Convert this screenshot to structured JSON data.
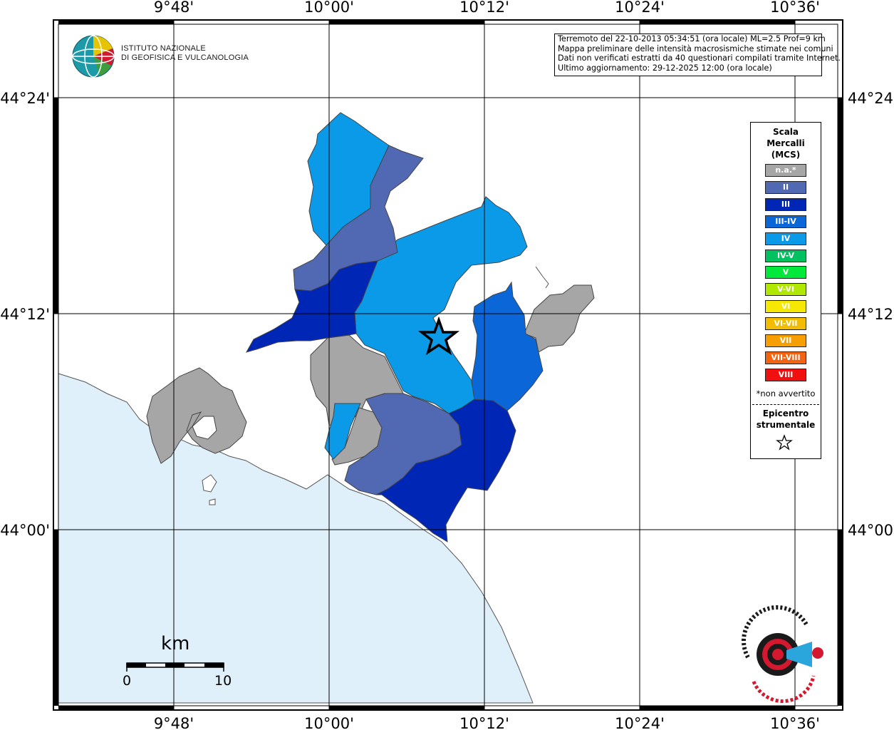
{
  "header": {
    "logo_alt": "INGV",
    "institute_line1": "ISTITUTO NAZIONALE",
    "institute_line2": "DI GEOFISICA E VULCANOLOGIA"
  },
  "info": {
    "line1": "Terremoto del 22-10-2013 05:34:51 (ora locale) ML=2.5 Prof=9 km",
    "line2": "Mappa preliminare delle intensità macrosismiche stimate nei comuni",
    "line3": "Dati non verificati estratti da 40 questionari compilati tramite Internet.",
    "line4": "Ultimo aggiornamento: 29-12-2025 12:00 (ora locale)"
  },
  "axes": {
    "longitude_ticks": [
      "9°48'",
      "10°00'",
      "10°12'",
      "10°24'",
      "10°36'"
    ],
    "latitude_ticks": [
      "44°24'",
      "44°12'",
      "44°00'"
    ]
  },
  "legend": {
    "title_line1": "Scala",
    "title_line2": "Mercalli",
    "title_line3": "(MCS)",
    "classes": [
      {
        "label": "n.a.*",
        "color": "#a6a6a6"
      },
      {
        "label": "II",
        "color": "#5169b3"
      },
      {
        "label": "III",
        "color": "#0026b5"
      },
      {
        "label": "III-IV",
        "color": "#0b67d8"
      },
      {
        "label": "IV",
        "color": "#0a9ae7"
      },
      {
        "label": "IV-V",
        "color": "#00c160"
      },
      {
        "label": "V",
        "color": "#00e83a"
      },
      {
        "label": "V-VI",
        "color": "#b1e800"
      },
      {
        "label": "VI",
        "color": "#f6e800"
      },
      {
        "label": "VI-VII",
        "color": "#f2bd00"
      },
      {
        "label": "VII",
        "color": "#f79e00"
      },
      {
        "label": "VII-VIII",
        "color": "#f26411"
      },
      {
        "label": "VIII",
        "color": "#f01010"
      }
    ],
    "note": "*non avvertito",
    "epicenter_line1": "Epicentro",
    "epicenter_line2": "strumentale"
  },
  "scale_bar": {
    "unit": "km",
    "min_label": "0",
    "max_label": "10"
  },
  "colors": {
    "sea": "#dff0fb",
    "land": "#ffffff",
    "grid": "#000000"
  }
}
